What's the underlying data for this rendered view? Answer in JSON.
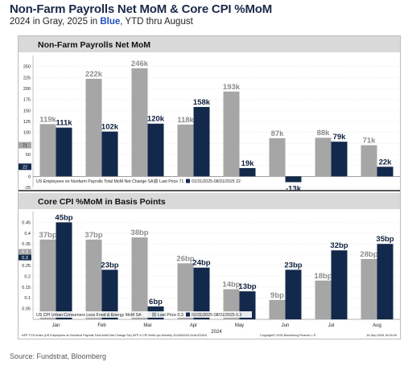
{
  "header": {
    "title": "Non-Farm Payrolls Net MoM & Core CPI %MoM",
    "subtitle_pre": "2024 in Gray, 2025 in ",
    "subtitle_blue": "Blue",
    "subtitle_post": ", YTD thru August"
  },
  "source": "Source: Fundstrat, Bloomberg",
  "footer_note": "NFP TCH Index (US Employees on Nonfarm Payrolls Total MoM Net Change SA) NFP & CPI MoM cpx  Monthly 31JAN2024-31AUG2024",
  "footer_copyright": "Copyright© 2025 Bloomberg Finance L.P.",
  "footer_date": "16-Sep-2025 16:09:25",
  "colors": {
    "gray": "#a6a6a6",
    "blue": "#13294b",
    "gray_label": "#8c8c8c",
    "blue_label": "#0f1f3d"
  },
  "chart_data": [
    {
      "type": "bar",
      "title": "Non-Farm Payrolls Net MoM",
      "categories": [
        "Jan",
        "Feb",
        "Mar",
        "Apr",
        "May",
        "Jun",
        "Jul",
        "Aug"
      ],
      "ylim": [
        -25,
        275
      ],
      "yticks": [
        -25,
        0,
        25,
        50,
        75,
        100,
        125,
        150,
        175,
        200,
        225,
        250
      ],
      "series": [
        {
          "name": "2024",
          "values": [
            119,
            222,
            246,
            118,
            193,
            87,
            88,
            71
          ],
          "labels": [
            "119k",
            "222k",
            "246k",
            "118k",
            "193k",
            "87k",
            "88k",
            "71k"
          ]
        },
        {
          "name": "2025",
          "values": [
            111,
            102,
            120,
            158,
            19,
            -13,
            79,
            22
          ],
          "labels": [
            "111k",
            "102k",
            "120k",
            "158k",
            "19k",
            "-13k",
            "79k",
            "22k"
          ]
        }
      ],
      "legend": [
        "US Employees on Nonfarm Payrolls Total MoM Net Change SA",
        "Last Price 71",
        "01/31/2025-08/31/2025 22"
      ],
      "axis_markers": [
        "71",
        "22"
      ]
    },
    {
      "type": "bar",
      "title": "Core CPI %MoM in Basis Points",
      "categories": [
        "Jan",
        "Feb",
        "Mar",
        "Apr",
        "May",
        "Jun",
        "Jul",
        "Aug"
      ],
      "ylim": [
        0,
        50
      ],
      "yticks": [
        0.05,
        0.1,
        0.15,
        0.2,
        0.25,
        0.3,
        0.35,
        0.4,
        0.45
      ],
      "ytick_labels": [
        "0.05",
        "0.1",
        "0.15",
        "0.2",
        "0.25",
        "0.3",
        "0.35",
        "0.4",
        "0.45"
      ],
      "series": [
        {
          "name": "2024",
          "values": [
            37,
            37,
            38,
            26,
            14,
            9,
            18,
            28
          ],
          "labels": [
            "37bp",
            "37bp",
            "38bp",
            "26bp",
            "14bp",
            "9bp",
            "18bp",
            "28bp"
          ]
        },
        {
          "name": "2025",
          "values": [
            45,
            23,
            6,
            24,
            13,
            23,
            32,
            35
          ],
          "labels": [
            "45bp",
            "23bp",
            "6bp",
            "24bp",
            "13bp",
            "23bp",
            "32bp",
            "35bp"
          ]
        }
      ],
      "legend": [
        "US CPI Urban Consumers Less Food & Energy MoM SA",
        "Last Price 0.3",
        "01/31/2025-08/31/2025 0.3"
      ],
      "axis_markers": [
        "0.3",
        "0.3"
      ],
      "year_label": "2024"
    }
  ]
}
